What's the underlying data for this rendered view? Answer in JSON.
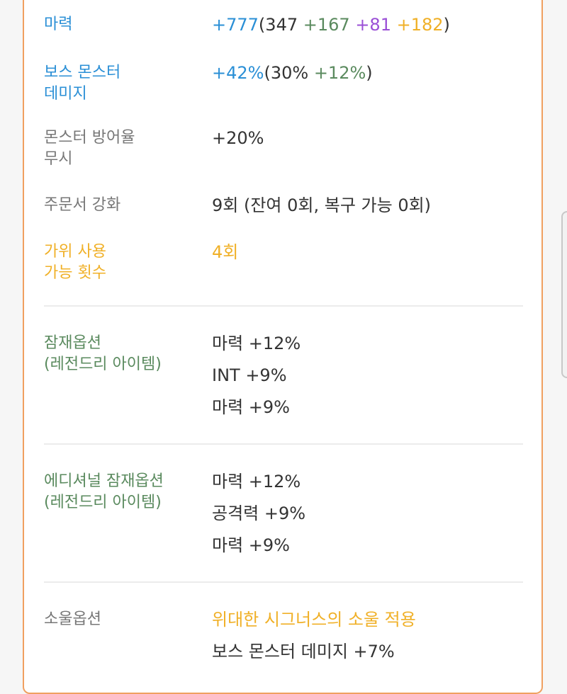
{
  "stats": {
    "magic": {
      "label": "마력",
      "total": "+777",
      "open": "(",
      "base": "347",
      "bonus_green": "+167",
      "bonus_purple": "+81",
      "bonus_orange": "+182",
      "close": ")"
    },
    "boss_damage": {
      "label_line1": "보스 몬스터",
      "label_line2": "데미지",
      "total": "+42%",
      "open": "(",
      "base": "30%",
      "bonus_green": "+12%",
      "close": ")"
    },
    "ignore_defense": {
      "label_line1": "몬스터 방어율",
      "label_line2": "무시",
      "value": "+20%"
    },
    "scroll_upgrade": {
      "label": "주문서 강화",
      "value": "9회 (잔여 0회, 복구 가능 0회)"
    },
    "scissors": {
      "label_line1": "가위 사용",
      "label_line2": "가능 횟수",
      "value": "4회"
    }
  },
  "potential": {
    "label_line1": "잠재옵션",
    "label_line2": "(레전드리 아이템)",
    "lines": [
      "마력 +12%",
      "INT +9%",
      "마력 +9%"
    ]
  },
  "additional_potential": {
    "label_line1": "에디셔널 잠재옵션",
    "label_line2": "(레전드리 아이템)",
    "lines": [
      "마력 +12%",
      "공격력 +9%",
      "마력 +9%"
    ]
  },
  "soul": {
    "label": "소울옵션",
    "name": "위대한 시그너스의 소울 적용",
    "effect": "보스 몬스터 데미지 +7%"
  },
  "colors": {
    "blue": "#2a8fd6",
    "green": "#5a8a5e",
    "purple": "#9a4fd6",
    "orange": "#f0b027",
    "gray": "#777777",
    "border": "#f0a060"
  }
}
